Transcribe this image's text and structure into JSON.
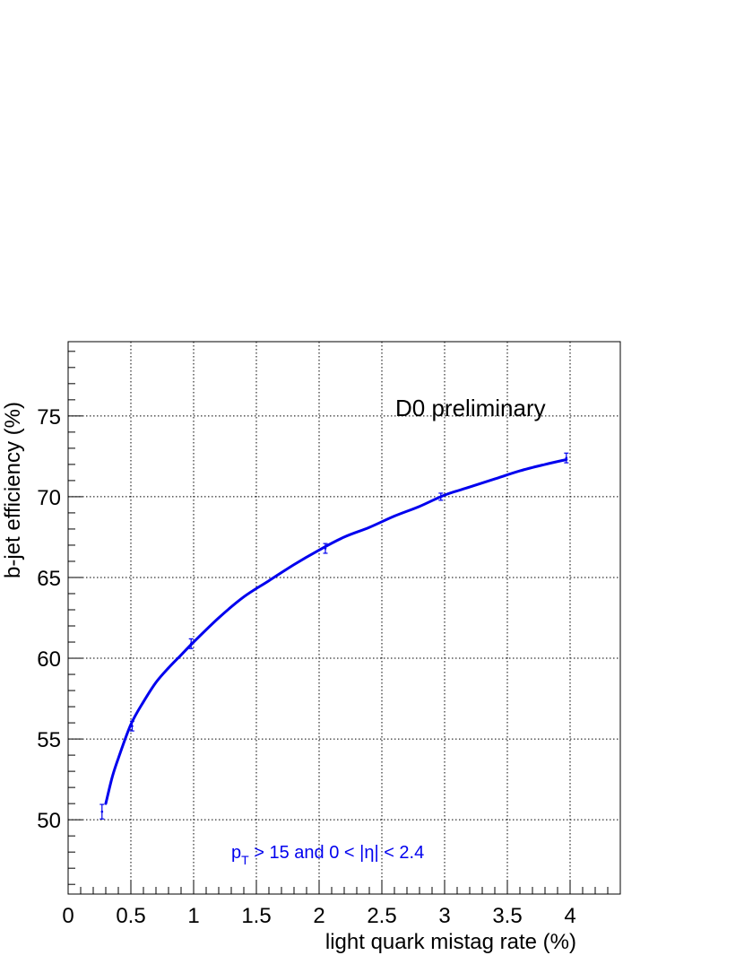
{
  "chart_data": {
    "type": "line",
    "xlabel": "light quark mistag rate (%)",
    "ylabel": "b-jet efficiency (%)",
    "xlim": [
      0,
      4.4
    ],
    "ylim": [
      45.4,
      79.6
    ],
    "x_ticks": [
      0,
      0.5,
      1,
      1.5,
      2,
      2.5,
      3,
      3.5,
      4
    ],
    "x_tick_labels": [
      "0",
      "0.5",
      "1",
      "1.5",
      "2",
      "2.5",
      "3",
      "3.5",
      "4"
    ],
    "y_ticks": [
      50,
      55,
      60,
      65,
      70,
      75
    ],
    "y_tick_labels": [
      "50",
      "55",
      "60",
      "65",
      "70",
      "75"
    ],
    "grid": true,
    "annotation": "D0 preliminary",
    "cut_label": {
      "p": "p",
      "sub": "T",
      "rest": " > 15 and  0 < |η| < 2.4"
    },
    "series": [
      {
        "color": "#0000ee",
        "points": [
          {
            "x": 0.27,
            "y": 50.5,
            "err": 0.45
          },
          {
            "x": 0.51,
            "y": 55.8,
            "err": 0.3
          },
          {
            "x": 0.98,
            "y": 60.9,
            "err": 0.3
          },
          {
            "x": 2.05,
            "y": 66.8,
            "err": 0.3
          },
          {
            "x": 2.97,
            "y": 70.0,
            "err": 0.22
          },
          {
            "x": 3.97,
            "y": 72.4,
            "err": 0.3
          }
        ],
        "fit_curve": [
          [
            0.3,
            51.0
          ],
          [
            0.35,
            52.6
          ],
          [
            0.4,
            53.8
          ],
          [
            0.5,
            55.9
          ],
          [
            0.6,
            57.3
          ],
          [
            0.7,
            58.5
          ],
          [
            0.8,
            59.4
          ],
          [
            0.9,
            60.2
          ],
          [
            1.0,
            61.0
          ],
          [
            1.2,
            62.5
          ],
          [
            1.4,
            63.8
          ],
          [
            1.6,
            64.8
          ],
          [
            1.8,
            65.8
          ],
          [
            2.0,
            66.7
          ],
          [
            2.2,
            67.5
          ],
          [
            2.4,
            68.1
          ],
          [
            2.6,
            68.8
          ],
          [
            2.8,
            69.4
          ],
          [
            3.0,
            70.1
          ],
          [
            3.2,
            70.6
          ],
          [
            3.4,
            71.1
          ],
          [
            3.6,
            71.6
          ],
          [
            3.8,
            72.0
          ],
          [
            3.97,
            72.3
          ]
        ]
      }
    ]
  }
}
